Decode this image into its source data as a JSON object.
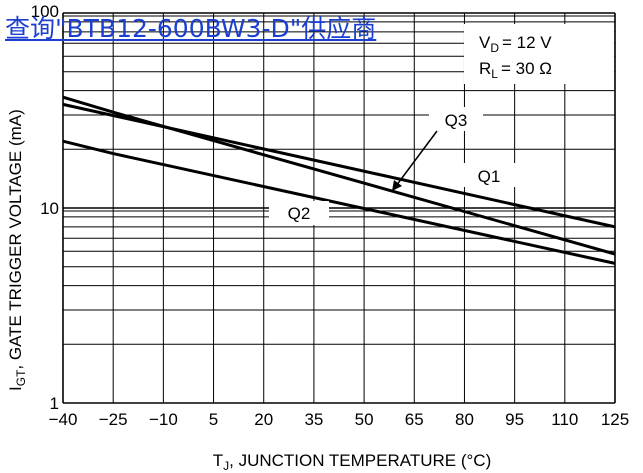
{
  "watermark": {
    "text": "查询\"BTB12-600BW3-D\"供应商",
    "color": "#1a3fd1"
  },
  "conditions": {
    "vd_text": "= 12 V",
    "rl_text": "= 30 Ω"
  },
  "chart_data": {
    "type": "line",
    "xlabel": "T",
    "xlabel_sub": "J",
    "xlabel_rest": ", JUNCTION TEMPERATURE (°C)",
    "ylabel": "I",
    "ylabel_sub": "GT",
    "ylabel_rest": ", GATE TRIGGER VOLTAGE (mA)",
    "x_ticks": [
      "−40",
      "−25",
      "−10",
      "5",
      "20",
      "35",
      "50",
      "65",
      "80",
      "95",
      "110",
      "125"
    ],
    "x_tick_values": [
      -40,
      -25,
      -10,
      5,
      20,
      35,
      50,
      65,
      80,
      95,
      110,
      125
    ],
    "y_ticks": [
      "1",
      "10",
      "100"
    ],
    "y_tick_values": [
      1,
      10,
      100
    ],
    "xlim": [
      -40,
      125
    ],
    "ylim": [
      1,
      100
    ],
    "yscale": "log",
    "grid": true,
    "series": [
      {
        "name": "Q1",
        "x": [
          -40,
          125
        ],
        "y": [
          34,
          8
        ]
      },
      {
        "name": "Q3",
        "x": [
          -40,
          -25,
          125
        ],
        "y": [
          37,
          31,
          5.8
        ]
      },
      {
        "name": "Q2",
        "x": [
          -40,
          -25,
          125
        ],
        "y": [
          22,
          19,
          5.2
        ]
      }
    ],
    "annotations": [
      {
        "text": "Q1",
        "x": 85,
        "y": 14.5
      },
      {
        "text": "Q3",
        "x": 71,
        "y": 27
      },
      {
        "text": "Q2",
        "x": 44,
        "y": 10
      }
    ]
  }
}
